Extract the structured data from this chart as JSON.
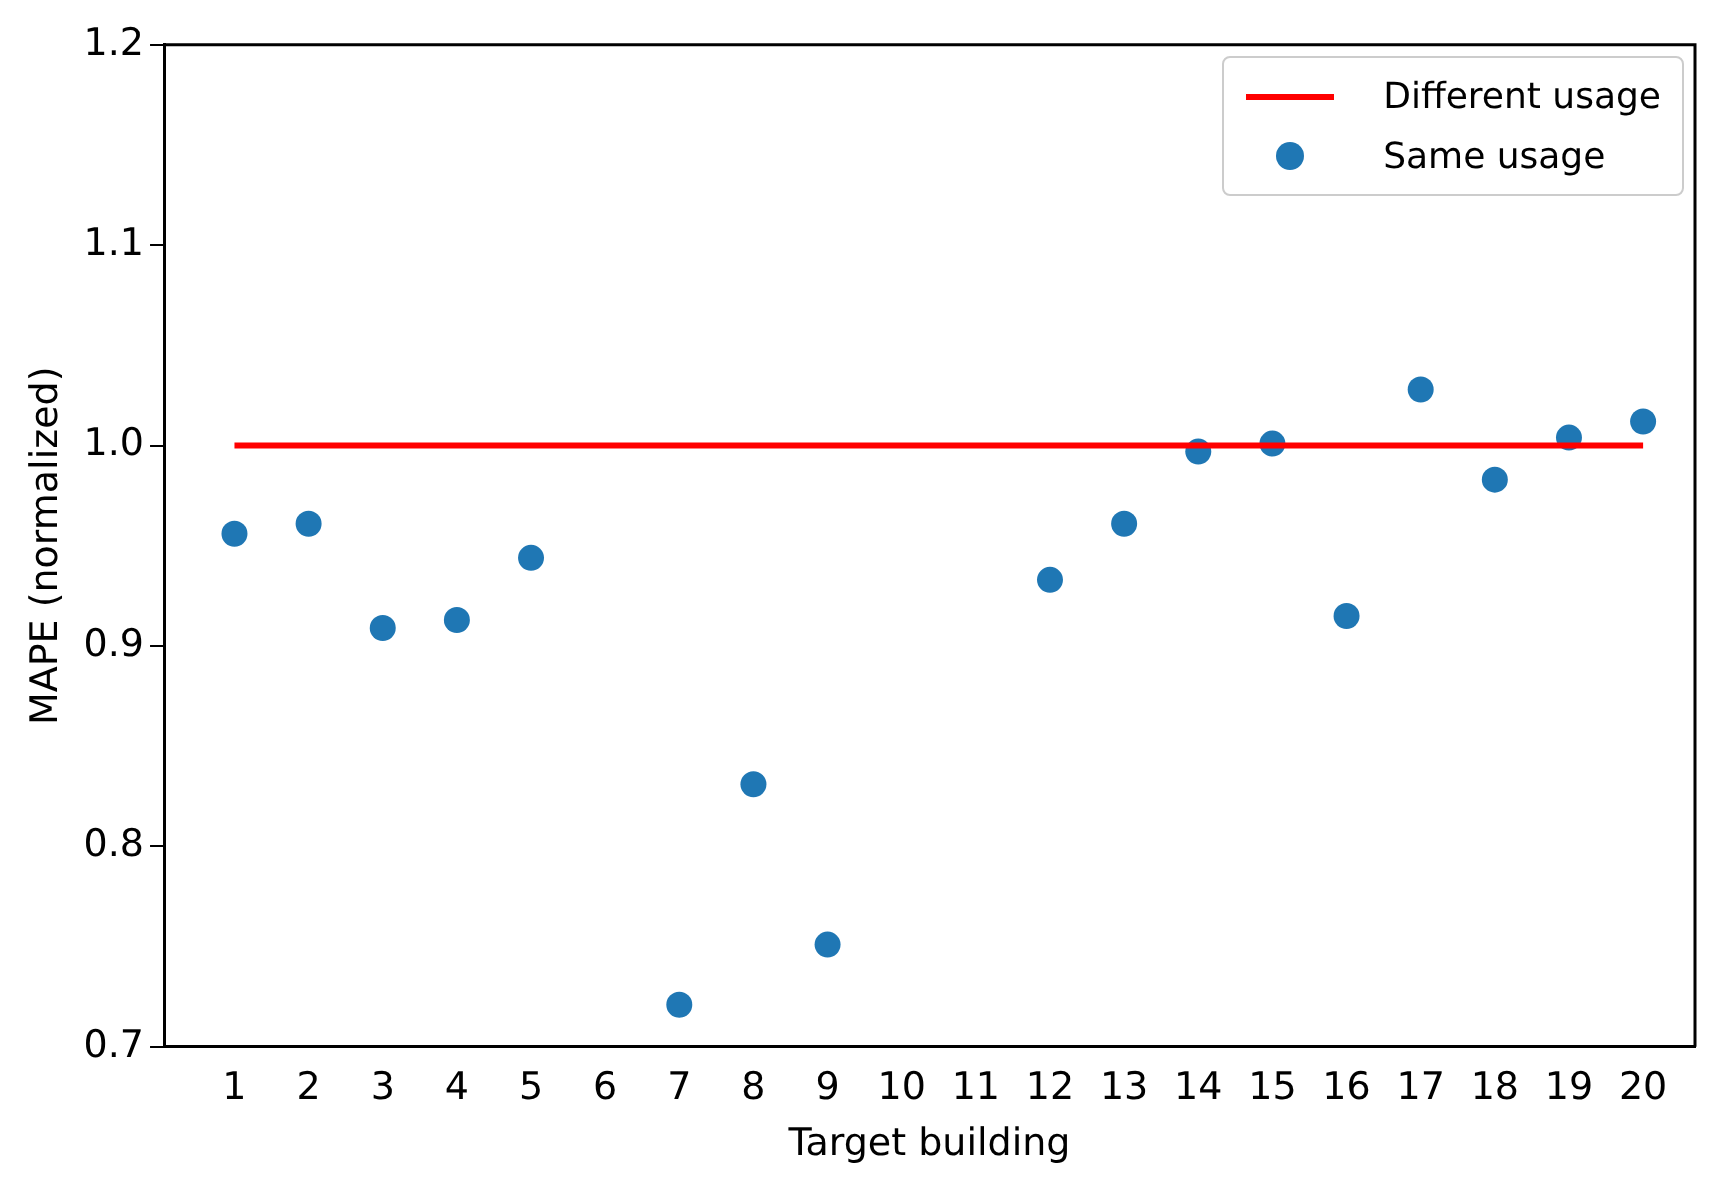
{
  "chart_data": {
    "type": "scatter",
    "xlabel": "Target building",
    "ylabel": "MAPE (normalized)",
    "xlim": [
      0.05,
      20.7
    ],
    "xticks": [
      1,
      2,
      3,
      4,
      5,
      6,
      7,
      8,
      9,
      10,
      11,
      12,
      13,
      14,
      15,
      16,
      17,
      18,
      19,
      20
    ],
    "ylim": [
      0.7,
      1.2
    ],
    "yticks": [
      0.7,
      0.8,
      0.9,
      {
        "value": 1,
        "label": "1.0"
      },
      1.1,
      1.2
    ],
    "grid": false,
    "legend": "top right",
    "marker": "circle",
    "series": [
      {
        "name": "Different usage",
        "type": "line",
        "color": "#ff0000",
        "x": [
          1,
          20
        ],
        "values": [
          1.0,
          1.0
        ],
        "marker": "none"
      },
      {
        "name": "Same usage",
        "type": "scatter",
        "color": "#1f77b4",
        "x": [
          1,
          2,
          3,
          4,
          5,
          7,
          8,
          9,
          12,
          13,
          14,
          15,
          16,
          17,
          18,
          19,
          20
        ],
        "values": [
          0.956,
          0.961,
          0.909,
          0.913,
          0.944,
          0.721,
          0.831,
          0.751,
          0.933,
          0.961,
          0.997,
          1.001,
          0.915,
          1.028,
          0.983,
          1.004,
          1.012
        ]
      }
    ]
  }
}
